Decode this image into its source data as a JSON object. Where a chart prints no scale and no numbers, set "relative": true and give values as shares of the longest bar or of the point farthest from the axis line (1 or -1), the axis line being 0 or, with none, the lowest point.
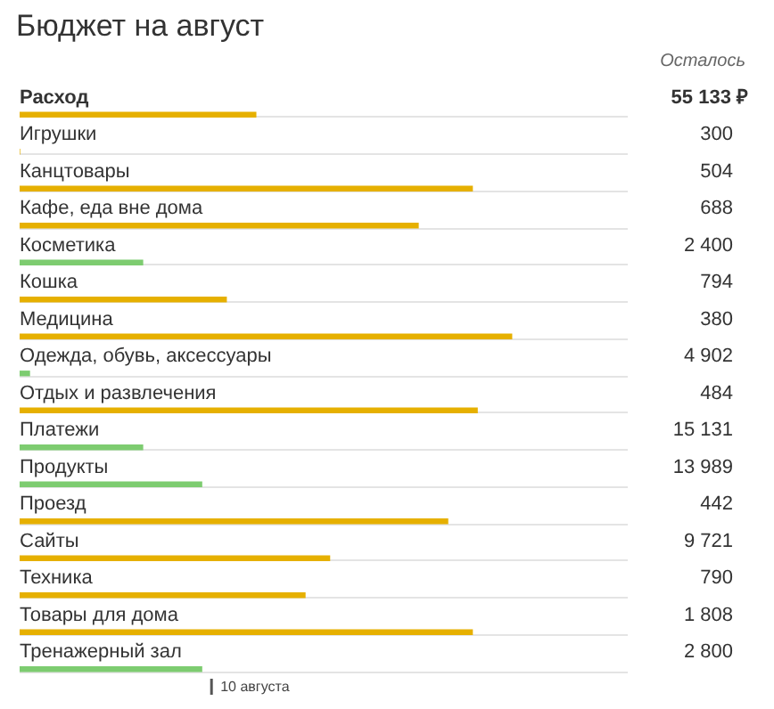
{
  "chart_data": {
    "type": "bar",
    "orientation": "horizontal",
    "relative": true,
    "title": "Бюджет на август",
    "annotations": [
      "Осталось",
      "55 133 ₽",
      "300",
      "504",
      "688",
      "2 400",
      "794",
      "380",
      "4 902",
      "484",
      "15 131",
      "13 989",
      "442",
      "9 721",
      "790",
      "1 808",
      "2 800"
    ],
    "categories": [
      "Расход",
      "Игрушки",
      "Канцтовары",
      "Кафе, еда вне дома",
      "Косметика",
      "Кошка",
      "Медицина",
      "Одежда, обувь, аксессуары",
      "Отдых и развлечения",
      "Платежи",
      "Продукты",
      "Проезд",
      "Сайты",
      "Техника",
      "Товары для дома",
      "Тренажерный зал"
    ],
    "values": [
      0.48,
      0,
      0.92,
      0.81,
      0.25,
      0.42,
      1,
      0.02,
      0.93,
      0.25,
      0.37,
      0.87,
      0.63,
      0.58,
      0.92,
      0.37
    ],
    "colors": [
      "#e6b000",
      "#e6b000",
      "#e6b000",
      "#e6b000",
      "#7dcc70",
      "#e6b000",
      "#e6b000",
      "#7dcc70",
      "#e6b000",
      "#7dcc70",
      "#7dcc70",
      "#e6b000",
      "#e6b000",
      "#e6b000",
      "#e6b000",
      "#7dcc70"
    ],
    "ref_lines": [
      {
        "axis": "x",
        "value": 0.39,
        "label": "10 августа",
        "color": "#555555"
      }
    ],
    "legend": false
  }
}
